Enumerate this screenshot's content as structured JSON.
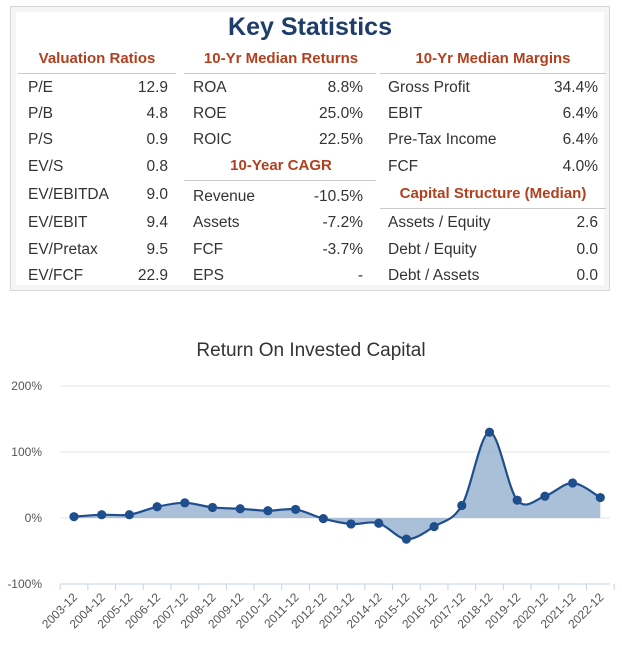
{
  "stats": {
    "title": "Key Statistics",
    "valuation": {
      "header": "Valuation Ratios",
      "rows": [
        {
          "label": "P/E",
          "value": "12.9"
        },
        {
          "label": "P/B",
          "value": "4.8"
        },
        {
          "label": "P/S",
          "value": "0.9"
        },
        {
          "label": "EV/S",
          "value": "0.8"
        },
        {
          "label": "EV/EBITDA",
          "value": "9.0"
        },
        {
          "label": "EV/EBIT",
          "value": "9.4"
        },
        {
          "label": "EV/Pretax",
          "value": "9.5"
        },
        {
          "label": "EV/FCF",
          "value": "22.9"
        }
      ]
    },
    "returns": {
      "header": "10-Yr Median Returns",
      "rows": [
        {
          "label": "ROA",
          "value": "8.8%"
        },
        {
          "label": "ROE",
          "value": "25.0%"
        },
        {
          "label": "ROIC",
          "value": "22.5%"
        }
      ]
    },
    "cagr": {
      "header": "10-Year CAGR",
      "rows": [
        {
          "label": "Revenue",
          "value": "-10.5%"
        },
        {
          "label": "Assets",
          "value": "-7.2%"
        },
        {
          "label": "FCF",
          "value": "-3.7%"
        },
        {
          "label": "EPS",
          "value": "-"
        }
      ]
    },
    "margins": {
      "header": "10-Yr Median Margins",
      "rows": [
        {
          "label": "Gross Profit",
          "value": "34.4%"
        },
        {
          "label": "EBIT",
          "value": "6.4%"
        },
        {
          "label": "Pre-Tax Income",
          "value": "6.4%"
        },
        {
          "label": "FCF",
          "value": "4.0%"
        }
      ]
    },
    "capital": {
      "header": "Capital Structure (Median)",
      "rows": [
        {
          "label": "Assets / Equity",
          "value": "2.6"
        },
        {
          "label": "Debt / Equity",
          "value": "0.0"
        },
        {
          "label": "Debt / Assets",
          "value": "0.0"
        }
      ]
    }
  },
  "colors": {
    "title": "#1e3d6b",
    "section_header": "#b2401f",
    "series_line": "#1f4e8c",
    "series_fill": "#8eaacb"
  },
  "chart_data": {
    "type": "area",
    "title": "Return On Invested Capital",
    "xlabel": "",
    "ylabel": "",
    "ylim": [
      -100,
      200
    ],
    "yticks": [
      -100,
      0,
      100,
      200
    ],
    "ytick_labels": [
      "-100%",
      "0%",
      "100%",
      "200%"
    ],
    "grid": "horizontal",
    "legend": "none",
    "categories": [
      "2003-12",
      "2004-12",
      "2005-12",
      "2006-12",
      "2007-12",
      "2008-12",
      "2009-12",
      "2010-12",
      "2011-12",
      "2012-12",
      "2013-12",
      "2014-12",
      "2015-12",
      "2016-12",
      "2017-12",
      "2018-12",
      "2019-12",
      "2020-12",
      "2021-12",
      "2022-12"
    ],
    "values": [
      2,
      5,
      5,
      17,
      23,
      16,
      14,
      11,
      13,
      -1,
      -9,
      -8,
      -32,
      -13,
      19,
      130,
      27,
      33,
      53,
      31
    ]
  }
}
